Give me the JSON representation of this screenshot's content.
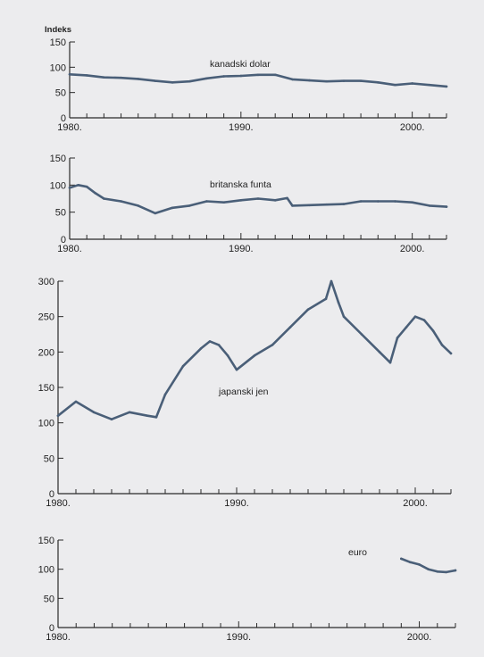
{
  "chart_data": [
    {
      "type": "line",
      "ylabel": "Indeks",
      "ylim": [
        0,
        150
      ],
      "yticks": [
        0,
        50,
        100,
        150
      ],
      "xlim": [
        1980,
        2002
      ],
      "xticks": [
        "1980.",
        "1990.",
        "2000."
      ],
      "series": [
        {
          "name": "kanadski dolar",
          "x": [
            1980,
            1981,
            1982,
            1983,
            1984,
            1985,
            1986,
            1987,
            1988,
            1989,
            1990,
            1991,
            1992,
            1993,
            1994,
            1995,
            1996,
            1997,
            1998,
            1999,
            2000,
            2001,
            2002
          ],
          "values": [
            86,
            84,
            80,
            79,
            77,
            73,
            70,
            72,
            78,
            82,
            83,
            85,
            85,
            76,
            74,
            72,
            73,
            73,
            70,
            65,
            68,
            65,
            62
          ]
        }
      ]
    },
    {
      "type": "line",
      "ylim": [
        0,
        150
      ],
      "yticks": [
        0,
        50,
        100,
        150
      ],
      "xlim": [
        1980,
        2002
      ],
      "xticks": [
        "1980.",
        "1990.",
        "2000."
      ],
      "series": [
        {
          "name": "britanska funta",
          "x": [
            1980,
            1980.5,
            1981,
            1981.5,
            1982,
            1983,
            1984,
            1985,
            1986,
            1987,
            1988,
            1989,
            1990,
            1991,
            1992,
            1992.7,
            1993,
            1994,
            1995,
            1996,
            1997,
            1998,
            1999,
            2000,
            2001,
            2002
          ],
          "values": [
            95,
            100,
            97,
            85,
            75,
            70,
            62,
            48,
            58,
            62,
            70,
            68,
            72,
            75,
            72,
            76,
            62,
            63,
            64,
            65,
            70,
            70,
            70,
            68,
            62,
            60
          ]
        }
      ]
    },
    {
      "type": "line",
      "ylim": [
        0,
        300
      ],
      "yticks": [
        0,
        50,
        100,
        150,
        200,
        250,
        300
      ],
      "xlim": [
        1980,
        2002
      ],
      "xticks": [
        "1980.",
        "1990.",
        "2000."
      ],
      "series": [
        {
          "name": "japanski jen",
          "x": [
            1980,
            1981,
            1982,
            1983,
            1984,
            1985,
            1985.5,
            1986,
            1987,
            1988,
            1988.5,
            1989,
            1989.5,
            1990,
            1991,
            1992,
            1993,
            1994,
            1995,
            1995.3,
            1995.7,
            1996,
            1997,
            1998,
            1998.6,
            1999,
            1999.5,
            2000,
            2000.5,
            2001,
            2001.5,
            2002
          ],
          "values": [
            110,
            130,
            115,
            105,
            115,
            110,
            108,
            140,
            180,
            205,
            215,
            210,
            195,
            175,
            195,
            210,
            235,
            260,
            275,
            300,
            270,
            250,
            225,
            200,
            185,
            220,
            235,
            250,
            245,
            230,
            210,
            198
          ]
        }
      ]
    },
    {
      "type": "line",
      "ylim": [
        0,
        150
      ],
      "yticks": [
        0,
        50,
        100,
        150
      ],
      "xlim": [
        1980,
        2002
      ],
      "xticks": [
        "1980.",
        "1990.",
        "2000."
      ],
      "series": [
        {
          "name": "euro",
          "x": [
            1999,
            1999.5,
            2000,
            2000.5,
            2001,
            2001.5,
            2002
          ],
          "values": [
            118,
            112,
            108,
            100,
            96,
            95,
            98
          ]
        }
      ]
    }
  ],
  "style": {
    "line_color": "#4a5f78",
    "axis_color": "#2a2a2a",
    "background": "#ececee"
  }
}
